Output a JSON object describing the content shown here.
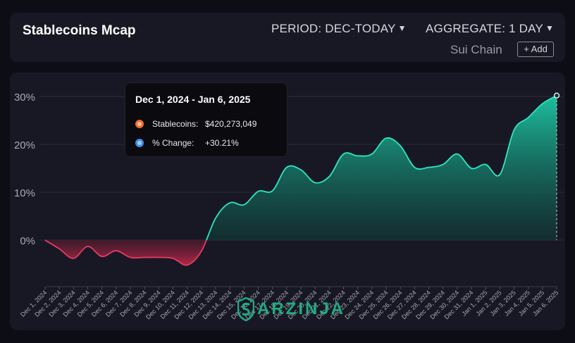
{
  "header": {
    "title": "Stablecoins Mcap",
    "period_label": "PERIOD: DEC-TODAY",
    "aggregate_label": "AGGREGATE: 1 DAY",
    "chain": "Sui Chain",
    "add_label": "+ Add"
  },
  "tooltip": {
    "title": "Dec 1, 2024 - Jan 6, 2025",
    "rows": [
      {
        "label": "Stablecoins:",
        "value": "$420,273,049",
        "color": "#f26a2e"
      },
      {
        "label": "% Change:",
        "value": "+30.21%",
        "color": "#3f8ee8"
      }
    ]
  },
  "watermark": {
    "text": "ARZINJA",
    "icon": "arzinja-logo-icon"
  },
  "colors": {
    "positive_line": "#2ee6c3",
    "positive_fill": "#17a085",
    "negative_line": "#e23b63",
    "negative_fill": "#b4243f",
    "grid": "#2c2c3a",
    "axis_text": "#a9a9b4"
  },
  "chart_data": {
    "type": "area",
    "title": "Stablecoins Mcap",
    "xlabel": "",
    "ylabel": "",
    "y_unit": "%",
    "ylim": [
      -9.5,
      31.5
    ],
    "yticks": [
      0,
      10,
      20,
      30
    ],
    "ytick_labels": [
      "0%",
      "10%",
      "20%",
      "30%"
    ],
    "grid": true,
    "x": [
      "Dec 1, 2024",
      "Dec 2, 2024",
      "Dec 3, 2024",
      "Dec 4, 2024",
      "Dec 5, 2024",
      "Dec 6, 2024",
      "Dec 7, 2024",
      "Dec 8, 2024",
      "Dec 9, 2024",
      "Dec 10, 2024",
      "Dec 11, 2024",
      "Dec 12, 2024",
      "Dec 13, 2024",
      "Dec 14, 2024",
      "Dec 15, 2024",
      "Dec 16, 2024",
      "Dec 17, 2024",
      "Dec 18, 2024",
      "Dec 19, 2024",
      "Dec 20, 2024",
      "Dec 21, 2024",
      "Dec 22, 2024",
      "Dec 23, 2024",
      "Dec 24, 2024",
      "Dec 25, 2024",
      "Dec 26, 2024",
      "Dec 27, 2024",
      "Dec 28, 2024",
      "Dec 29, 2024",
      "Dec 30, 2024",
      "Dec 31, 2024",
      "Jan 1, 2025",
      "Jan 2, 2025",
      "Jan 3, 2025",
      "Jan 4, 2025",
      "Jan 5, 2025",
      "Jan 6, 2025"
    ],
    "series": [
      {
        "values": [
          0,
          -1.8,
          -3.8,
          -1.3,
          -3.4,
          -2.2,
          -3.6,
          -3.6,
          -3.6,
          -3.8,
          -5.2,
          -2.3,
          4.6,
          7.8,
          7.4,
          10.2,
          10.3,
          15.2,
          14.7,
          12.0,
          13.3,
          18.0,
          17.6,
          18.0,
          21.3,
          19.7,
          15.2,
          15.2,
          15.8,
          18.0,
          15.0,
          15.8,
          13.7,
          23.0,
          25.6,
          28.5,
          30.2
        ]
      }
    ],
    "highlight_index": 36
  }
}
